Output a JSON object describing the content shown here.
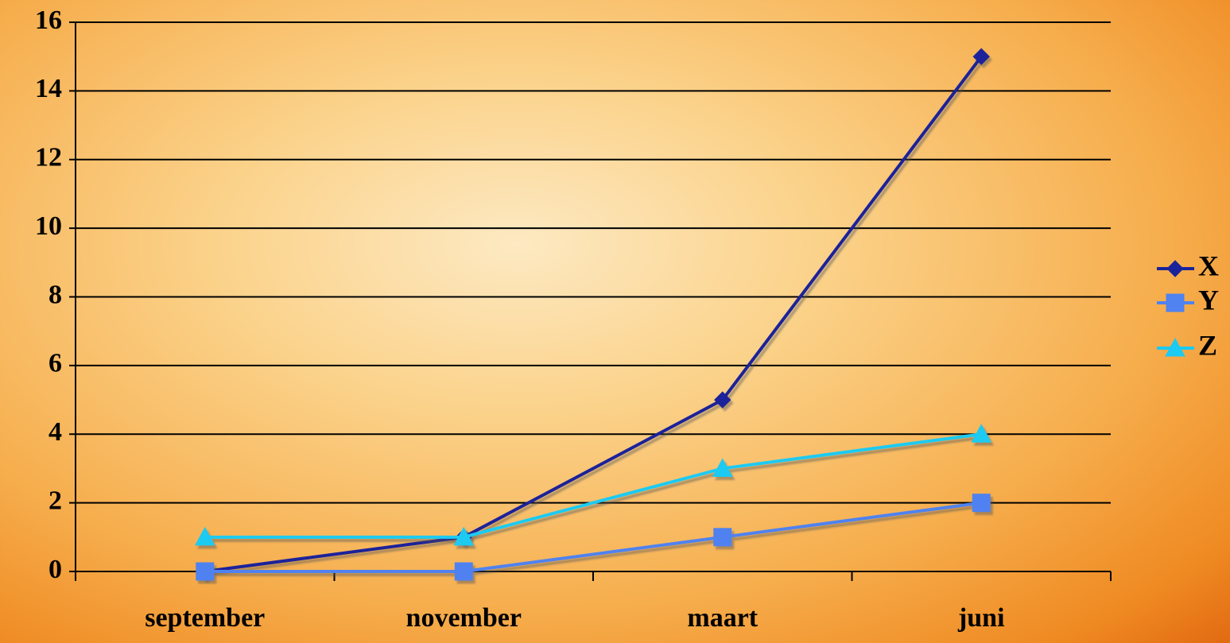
{
  "chart_data": {
    "type": "line",
    "categories": [
      "september",
      "november",
      "maart",
      "juni"
    ],
    "series": [
      {
        "name": "X",
        "color": "#1a239a",
        "marker": "diamond",
        "values": [
          0,
          1,
          5,
          15
        ]
      },
      {
        "name": "Y",
        "color": "#5082f0",
        "marker": "square",
        "values": [
          0,
          0,
          1,
          2
        ]
      },
      {
        "name": "Z",
        "color": "#1ccaf2",
        "marker": "triangle",
        "values": [
          1,
          1,
          3,
          4
        ]
      }
    ],
    "ylim": [
      0,
      16
    ],
    "yticks": [
      0,
      2,
      4,
      6,
      8,
      10,
      12,
      14,
      16
    ],
    "grid": true,
    "legend": "right"
  }
}
